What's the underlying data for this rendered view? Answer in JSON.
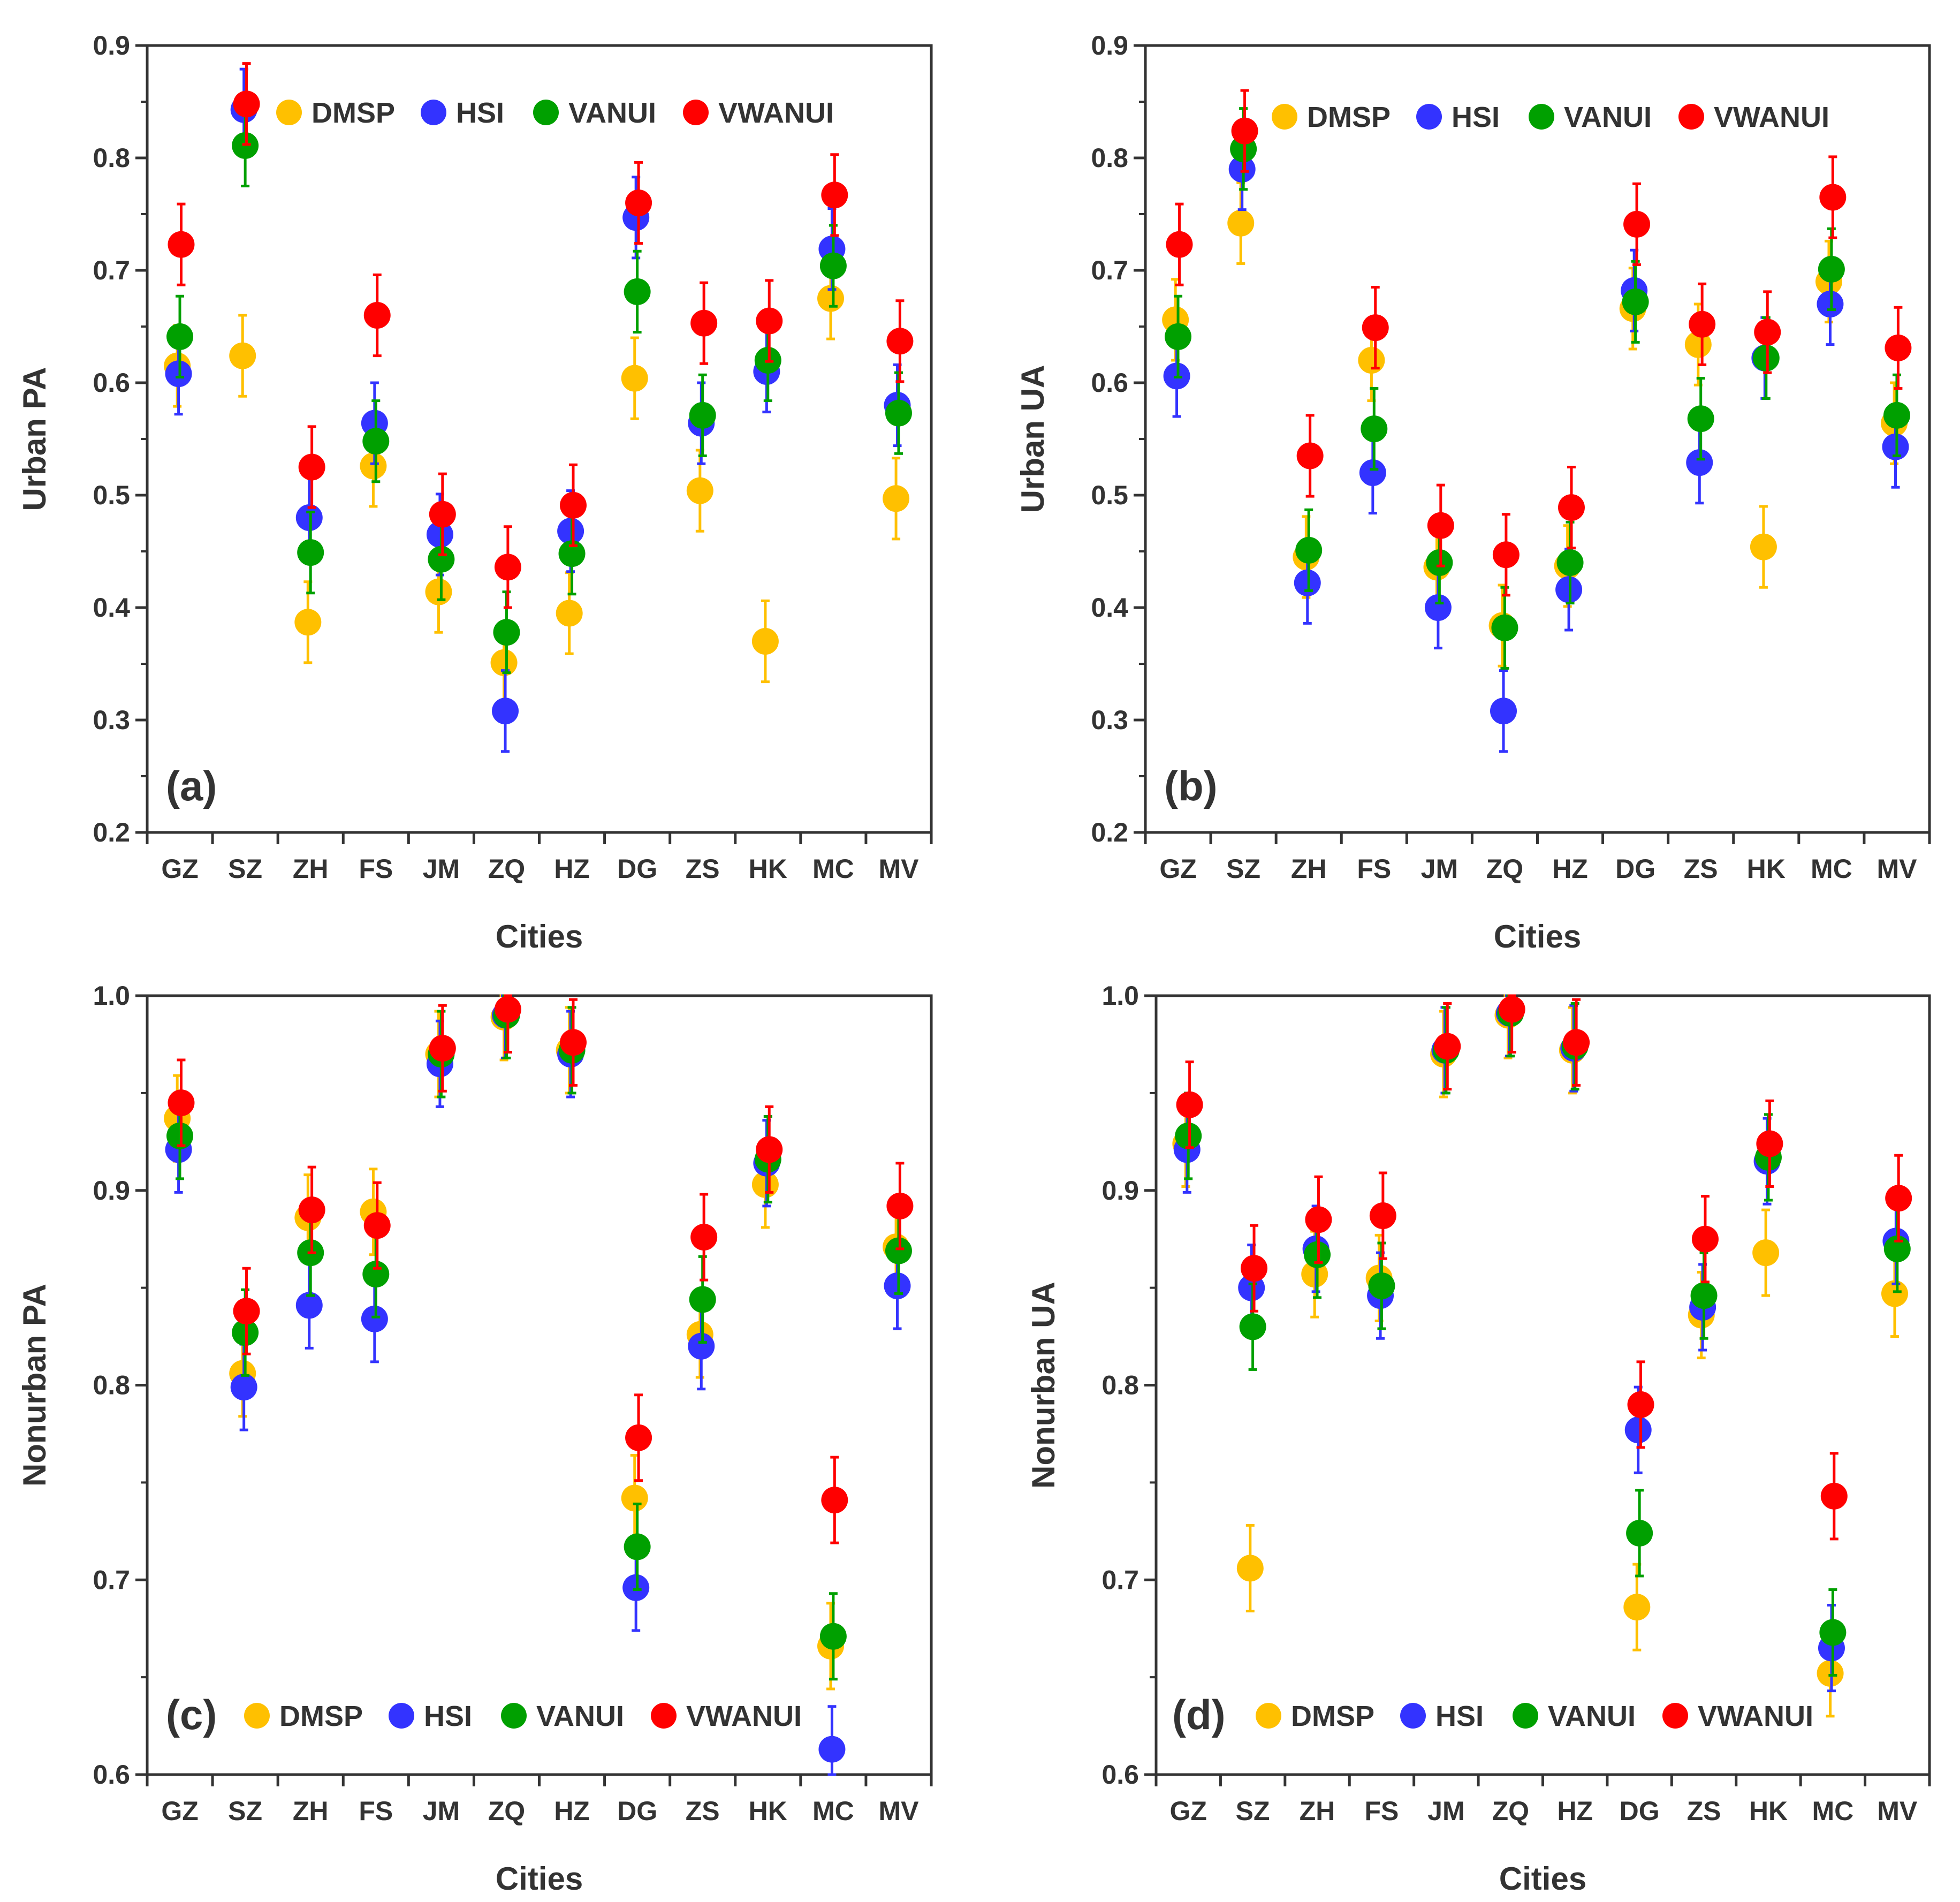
{
  "colors": {
    "DMSP": "#FFC000",
    "HSI": "#3333FF",
    "VANUI": "#00A000",
    "VWANUI": "#FF0000"
  },
  "chart_data": [
    {
      "type": "scatter",
      "panel_label": "(a)",
      "xlabel": "Cities",
      "ylabel": "Urban PA",
      "categories": [
        "GZ",
        "SZ",
        "ZH",
        "FS",
        "JM",
        "ZQ",
        "HZ",
        "DG",
        "ZS",
        "HK",
        "MC",
        "MV"
      ],
      "ylim": [
        0.2,
        0.9
      ],
      "yticks": [
        "0.2",
        "0.3",
        "0.4",
        "0.5",
        "0.6",
        "0.7",
        "0.8",
        "0.9"
      ],
      "legend_placement": "top",
      "error_bar": 0.036,
      "series": [
        {
          "name": "DMSP",
          "values": [
            0.615,
            0.624,
            0.387,
            0.526,
            0.414,
            0.351,
            0.395,
            0.604,
            0.504,
            0.37,
            0.675,
            0.497
          ]
        },
        {
          "name": "HSI",
          "values": [
            0.608,
            0.843,
            0.48,
            0.564,
            0.465,
            0.308,
            0.468,
            0.747,
            0.564,
            0.61,
            0.719,
            0.58
          ]
        },
        {
          "name": "VANUI",
          "values": [
            0.641,
            0.811,
            0.449,
            0.548,
            0.443,
            0.378,
            0.448,
            0.681,
            0.571,
            0.62,
            0.704,
            0.573
          ]
        },
        {
          "name": "VWANUI",
          "values": [
            0.723,
            0.848,
            0.525,
            0.66,
            0.483,
            0.436,
            0.491,
            0.76,
            0.653,
            0.655,
            0.767,
            0.637
          ]
        }
      ]
    },
    {
      "type": "scatter",
      "panel_label": "(b)",
      "xlabel": "Cities",
      "ylabel": "Urban UA",
      "categories": [
        "GZ",
        "SZ",
        "ZH",
        "FS",
        "JM",
        "ZQ",
        "HZ",
        "DG",
        "ZS",
        "HK",
        "MC",
        "MV"
      ],
      "ylim": [
        0.2,
        0.9
      ],
      "yticks": [
        "0.2",
        "0.3",
        "0.4",
        "0.5",
        "0.6",
        "0.7",
        "0.8",
        "0.9"
      ],
      "legend_placement": "top",
      "error_bar": 0.036,
      "series": [
        {
          "name": "DMSP",
          "values": [
            0.656,
            0.742,
            0.445,
            0.62,
            0.436,
            0.384,
            0.437,
            0.666,
            0.634,
            0.454,
            0.69,
            0.564
          ]
        },
        {
          "name": "HSI",
          "values": [
            0.606,
            0.79,
            0.422,
            0.52,
            0.4,
            0.308,
            0.416,
            0.682,
            0.529,
            0.622,
            0.67,
            0.543
          ]
        },
        {
          "name": "VANUI",
          "values": [
            0.641,
            0.808,
            0.451,
            0.559,
            0.44,
            0.382,
            0.44,
            0.672,
            0.568,
            0.622,
            0.701,
            0.571
          ]
        },
        {
          "name": "VWANUI",
          "values": [
            0.723,
            0.824,
            0.535,
            0.649,
            0.473,
            0.447,
            0.489,
            0.741,
            0.652,
            0.645,
            0.765,
            0.631
          ]
        }
      ]
    },
    {
      "type": "scatter",
      "panel_label": "(c)",
      "xlabel": "Cities",
      "ylabel": "Nonurban PA",
      "categories": [
        "GZ",
        "SZ",
        "ZH",
        "FS",
        "JM",
        "ZQ",
        "HZ",
        "DG",
        "ZS",
        "HK",
        "MC",
        "MV"
      ],
      "ylim": [
        0.6,
        1.0
      ],
      "yticks": [
        "0.6",
        "0.7",
        "0.8",
        "0.9",
        "1.0"
      ],
      "legend_placement": "bottom",
      "error_bar": 0.022,
      "series": [
        {
          "name": "DMSP",
          "values": [
            0.937,
            0.806,
            0.886,
            0.889,
            0.97,
            0.989,
            0.972,
            0.742,
            0.826,
            0.903,
            0.666,
            0.871
          ]
        },
        {
          "name": "HSI",
          "values": [
            0.921,
            0.799,
            0.841,
            0.834,
            0.965,
            0.99,
            0.97,
            0.696,
            0.82,
            0.914,
            0.613,
            0.851
          ]
        },
        {
          "name": "VANUI",
          "values": [
            0.928,
            0.827,
            0.868,
            0.857,
            0.97,
            0.99,
            0.972,
            0.717,
            0.844,
            0.916,
            0.671,
            0.869
          ]
        },
        {
          "name": "VWANUI",
          "values": [
            0.945,
            0.838,
            0.89,
            0.882,
            0.973,
            0.993,
            0.976,
            0.773,
            0.876,
            0.921,
            0.741,
            0.892
          ]
        }
      ]
    },
    {
      "type": "scatter",
      "panel_label": "(d)",
      "xlabel": "Cities",
      "ylabel": "Nonurban UA",
      "categories": [
        "GZ",
        "SZ",
        "ZH",
        "FS",
        "JM",
        "ZQ",
        "HZ",
        "DG",
        "ZS",
        "HK",
        "MC",
        "MV"
      ],
      "ylim": [
        0.6,
        1.0
      ],
      "yticks": [
        "0.6",
        "0.7",
        "0.8",
        "0.9",
        "1.0"
      ],
      "legend_placement": "bottom",
      "error_bar": 0.022,
      "series": [
        {
          "name": "DMSP",
          "values": [
            0.924,
            0.706,
            0.857,
            0.855,
            0.97,
            0.99,
            0.972,
            0.686,
            0.836,
            0.868,
            0.652,
            0.847
          ]
        },
        {
          "name": "HSI",
          "values": [
            0.921,
            0.85,
            0.87,
            0.846,
            0.972,
            0.991,
            0.973,
            0.777,
            0.84,
            0.915,
            0.665,
            0.874
          ]
        },
        {
          "name": "VANUI",
          "values": [
            0.928,
            0.83,
            0.867,
            0.851,
            0.972,
            0.991,
            0.974,
            0.724,
            0.846,
            0.917,
            0.673,
            0.87
          ]
        },
        {
          "name": "VWANUI",
          "values": [
            0.944,
            0.86,
            0.885,
            0.887,
            0.974,
            0.993,
            0.976,
            0.79,
            0.875,
            0.924,
            0.743,
            0.896
          ]
        }
      ]
    }
  ]
}
